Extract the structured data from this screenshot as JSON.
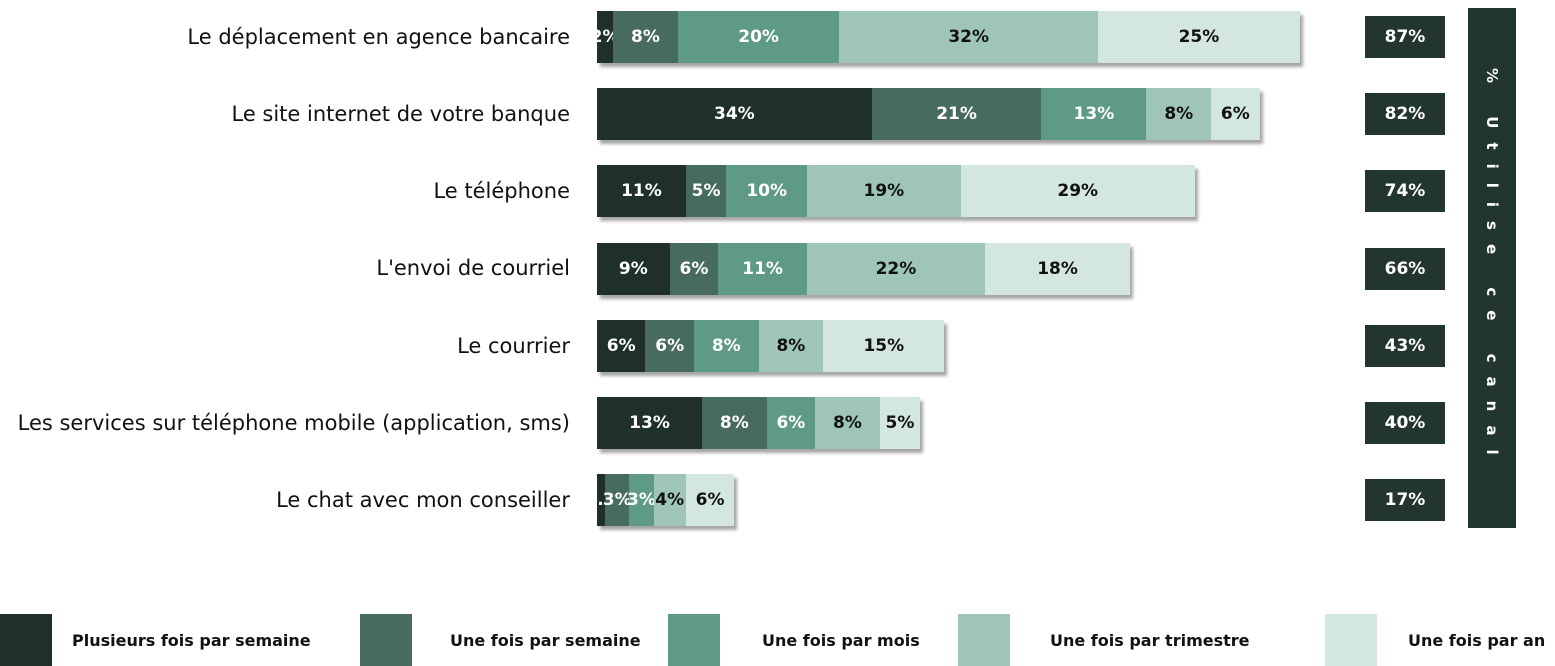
{
  "chart_data": {
    "type": "bar",
    "orientation": "horizontal",
    "stacked": true,
    "categories": [
      "Le déplacement en agence bancaire",
      "Le site internet de votre banque",
      "Le téléphone",
      "L'envoi de courriel",
      "Le courrier",
      "Les services sur téléphone mobile (application, sms)",
      "Le chat avec mon conseiller"
    ],
    "series": [
      {
        "name": "Plusieurs fois par semaine",
        "color": "#1f3029",
        "text_color": "#ffffff",
        "values": [
          2,
          34,
          11,
          9,
          6,
          13,
          1
        ],
        "value_labels": [
          "2%",
          "34%",
          "11%",
          "9%",
          "6%",
          "13%",
          "1..."
        ]
      },
      {
        "name": "Une fois par semaine",
        "color": "#476b5c",
        "text_color": "#ffffff",
        "values": [
          8,
          21,
          5,
          6,
          6,
          8,
          3
        ],
        "value_labels": [
          "8%",
          "21%",
          "5%",
          "6%",
          "6%",
          "8%",
          "3%"
        ]
      },
      {
        "name": "Une fois par mois",
        "color": "#5e9a84",
        "text_color": "#ffffff",
        "values": [
          20,
          13,
          10,
          11,
          8,
          6,
          3
        ],
        "value_labels": [
          "20%",
          "13%",
          "10%",
          "11%",
          "8%",
          "6%",
          "3%"
        ]
      },
      {
        "name": "Une fois par trimestre",
        "color": "#9fc5b7",
        "text_color": "#111111",
        "values": [
          32,
          8,
          19,
          22,
          8,
          8,
          4
        ],
        "value_labels": [
          "32%",
          "8%",
          "19%",
          "22%",
          "8%",
          "8%",
          "4%"
        ]
      },
      {
        "name": "Une fois par an",
        "color": "#d3e6df",
        "text_color": "#111111",
        "values": [
          25,
          6,
          29,
          18,
          15,
          5,
          6
        ],
        "value_labels": [
          "25%",
          "6%",
          "29%",
          "18%",
          "15%",
          "5%",
          "6%"
        ]
      }
    ],
    "totals": {
      "title": "% Utilise ce canal",
      "color": "#22362e",
      "values": [
        87,
        82,
        74,
        66,
        43,
        40,
        17
      ],
      "value_labels": [
        "87%",
        "82%",
        "74%",
        "66%",
        "43%",
        "40%",
        "17%"
      ]
    }
  }
}
